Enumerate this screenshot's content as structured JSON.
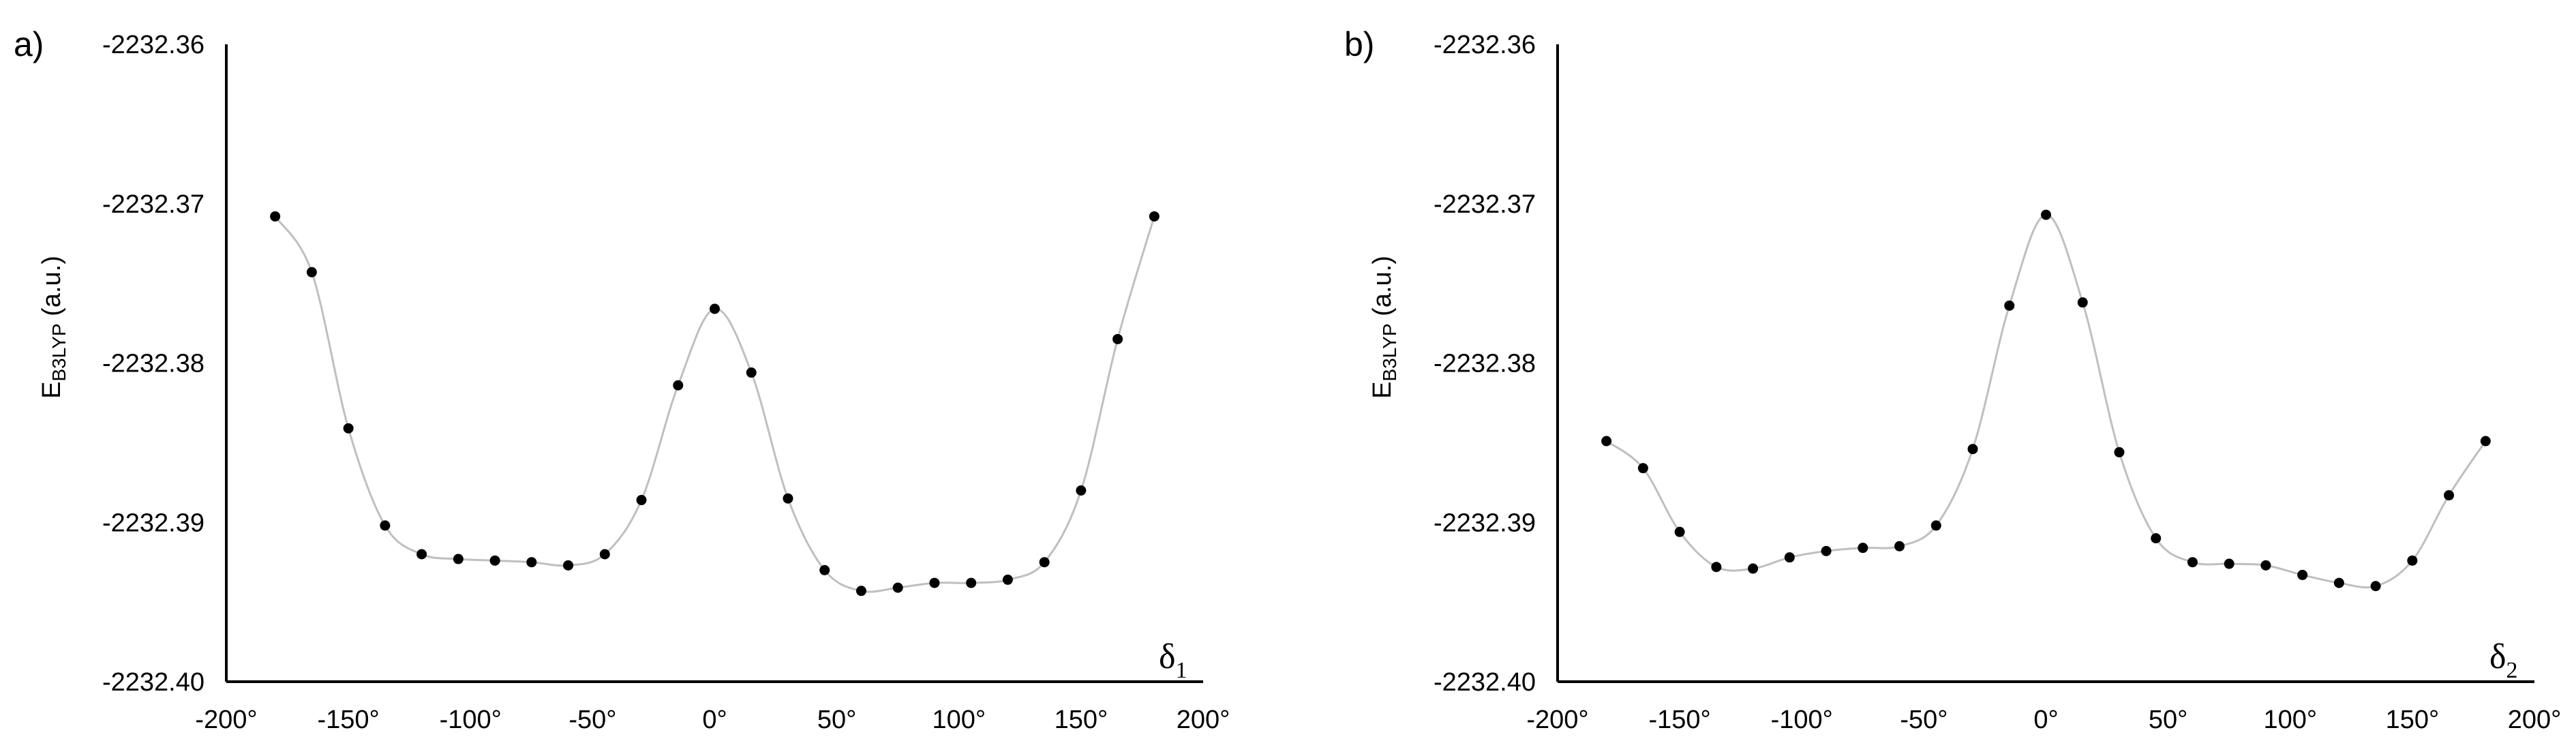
{
  "chart_data": [
    {
      "type": "scatter",
      "panel_label": "a)",
      "xlabel_main": "δ",
      "xlabel_sub": "1",
      "ylabel_main": "E",
      "ylabel_sub": "B3LYP",
      "ylabel_unit": " (a.u.)",
      "xlim": [
        -200,
        200
      ],
      "ylim": [
        -2232.4,
        -2232.36
      ],
      "x_ticks": [
        "-200°",
        "-150°",
        "-100°",
        "-50°",
        "0°",
        "50°",
        "100°",
        "150°",
        "200°"
      ],
      "y_ticks": [
        "-2232.36",
        "-2232.37",
        "-2232.38",
        "-2232.39",
        "-2232.40"
      ],
      "grid": false,
      "smooth_line": true,
      "line_color": "#bfbfbf",
      "marker_color": "#000000",
      "series": [
        {
          "x": [
            -180,
            -165,
            -150,
            -135,
            -120,
            -105,
            -90,
            -75,
            -60,
            -45,
            -30,
            -15,
            0,
            15,
            30,
            45,
            60,
            75,
            90,
            105,
            120,
            135,
            150,
            165,
            180
          ],
          "y": [
            -2232.3708,
            -2232.3743,
            -2232.3841,
            -2232.3902,
            -2232.392,
            -2232.3923,
            -2232.3924,
            -2232.3925,
            -2232.3927,
            -2232.392,
            -2232.3886,
            -2232.3814,
            -2232.3766,
            -2232.3806,
            -2232.3885,
            -2232.393,
            -2232.3943,
            -2232.3941,
            -2232.3938,
            -2232.3938,
            -2232.3936,
            -2232.3925,
            -2232.388,
            -2232.3785,
            -2232.3708
          ]
        }
      ]
    },
    {
      "type": "scatter",
      "panel_label": "b)",
      "xlabel_main": "δ",
      "xlabel_sub": "2",
      "ylabel_main": "E",
      "ylabel_sub": "B3LYP",
      "ylabel_unit": " (a.u.)",
      "xlim": [
        -200,
        200
      ],
      "ylim": [
        -2232.4,
        -2232.36
      ],
      "x_ticks": [
        "-200°",
        "-150°",
        "-100°",
        "-50°",
        "0°",
        "50°",
        "100°",
        "150°",
        "200°"
      ],
      "y_ticks": [
        "-2232.36",
        "-2232.37",
        "-2232.38",
        "-2232.39",
        "-2232.40"
      ],
      "grid": false,
      "smooth_line": true,
      "line_color": "#bfbfbf",
      "marker_color": "#000000",
      "series": [
        {
          "x": [
            -180,
            -165,
            -150,
            -135,
            -120,
            -105,
            -90,
            -75,
            -60,
            -45,
            -30,
            -15,
            0,
            15,
            30,
            45,
            60,
            75,
            90,
            105,
            120,
            135,
            150,
            165,
            180
          ],
          "y": [
            -2232.3849,
            -2232.3866,
            -2232.3906,
            -2232.3928,
            -2232.3929,
            -2232.3922,
            -2232.3918,
            -2232.3916,
            -2232.3915,
            -2232.3902,
            -2232.3854,
            -2232.3764,
            -2232.3707,
            -2232.3762,
            -2232.3856,
            -2232.391,
            -2232.3925,
            -2232.3926,
            -2232.3927,
            -2232.3933,
            -2232.3938,
            -2232.394,
            -2232.3924,
            -2232.3883,
            -2232.3849
          ]
        }
      ]
    }
  ]
}
